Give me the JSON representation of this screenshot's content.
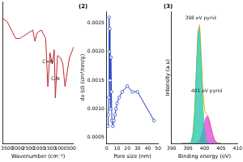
{
  "chart_data": [
    {
      "type": "line",
      "x_label": "Wavenumber (cm⁻¹)",
      "x": [
        3700,
        3500,
        3300,
        3100,
        2900,
        2700,
        2500,
        2300,
        2200,
        2100,
        1900,
        1700,
        1600,
        1500,
        1400,
        1300,
        1250,
        1150,
        1000,
        900,
        800,
        700,
        600,
        500,
        400
      ],
      "series": [
        {
          "color": "#c0282d",
          "values": [
            74,
            73,
            70,
            67,
            67,
            68,
            69,
            70,
            66,
            69,
            70,
            67,
            50,
            62,
            58,
            63,
            46,
            61,
            60,
            58,
            50,
            55,
            60,
            62,
            64
          ]
        }
      ],
      "xlim": [
        3700,
        400
      ],
      "xticks": [
        3500,
        3000,
        2500,
        2000,
        1500,
        1000,
        500
      ],
      "ylim": [
        30,
        80
      ],
      "tick_labels": "x",
      "grid": false,
      "annotations": [
        {
          "text": "C=N",
          "x": 1600,
          "y": 58
        },
        {
          "text": "C-N",
          "x": 1250,
          "y": 52
        }
      ]
    },
    {
      "type": "line",
      "title": "(2)",
      "x_label": "Pore size (nm)",
      "y_label": "dv (d) (cm³/nm/g)",
      "x": [
        1,
        1.5,
        2,
        2.3,
        2.6,
        3,
        3.3,
        3.6,
        4,
        4.5,
        5,
        6,
        7,
        8,
        9,
        10,
        12,
        15,
        20,
        25,
        30,
        46
      ],
      "series": [
        {
          "color": "#1f3fbf",
          "marker": "circle",
          "values": [
            0.0007,
            0.0009,
            0.0012,
            0.0026,
            0.002,
            0.0024,
            0.0015,
            0.001,
            0.0019,
            0.0013,
            0.0008,
            0.0007,
            0.0008,
            0.0009,
            0.001,
            0.0011,
            0.0012,
            0.0013,
            0.0014,
            0.0013,
            0.0013,
            0.0008
          ]
        }
      ],
      "xlim": [
        0,
        50
      ],
      "xticks": [
        0,
        10,
        20,
        30,
        40,
        50
      ],
      "ylim": [
        0.0004,
        0.0027
      ],
      "yticks": [
        0.0005,
        {
          "value": 0.001,
          "label": "0.0010"
        },
        0.0015,
        {
          "value": 0.002,
          "label": "0.0020"
        },
        0.0025
      ],
      "grid": false
    },
    {
      "type": "line",
      "title": "(3)",
      "x_label": "Binding energy (eV)",
      "y_label": "Intensity (a.u)",
      "x": [
        393,
        393.5,
        394,
        394.5,
        395,
        395.5,
        396,
        396.5,
        397,
        397.5,
        398,
        398.5,
        399,
        399.5,
        400,
        400.5,
        401,
        401.5,
        402,
        402.5,
        403,
        403.5,
        404,
        404.5,
        405
      ],
      "series": [
        {
          "type": "area",
          "color": "#21c4a8",
          "values": [
            0,
            0,
            0,
            0,
            0,
            0.2,
            1.5,
            7.6,
            25.4,
            57.6,
            88.6,
            92.1,
            64.8,
            30.8,
            9.9,
            2.2,
            0.3,
            0,
            0,
            0,
            0,
            0,
            0,
            0,
            0
          ]
        },
        {
          "type": "area",
          "color": "#e040d8",
          "values": [
            0,
            0,
            0,
            0,
            0,
            0,
            0,
            0,
            0.1,
            0.2,
            0.9,
            2.5,
            5.8,
            10.9,
            16.9,
            21.2,
            21.6,
            18.0,
            12.1,
            6.7,
            3.0,
            1.1,
            0.3,
            0.1,
            0
          ]
        },
        {
          "type": "line",
          "color": "#f0b400",
          "values": [
            0,
            0,
            0,
            0,
            0,
            0.2,
            1.5,
            7.6,
            25.5,
            57.8,
            89.5,
            94.6,
            70.6,
            41.7,
            26.8,
            23.4,
            21.9,
            18.0,
            12.1,
            6.7,
            3.0,
            1.1,
            0.3,
            0.1,
            0
          ]
        }
      ],
      "xlim": [
        390,
        410
      ],
      "xticks": [
        390,
        395,
        400,
        405,
        410
      ],
      "ylim": [
        0,
        105
      ],
      "tick_labels": "x",
      "grid": false,
      "annotations": [
        {
          "text": "398 eV pyrid",
          "x": 398.8,
          "y": 98
        },
        {
          "text": "401 eV pyrid",
          "x": 400.6,
          "y": 40
        }
      ]
    }
  ]
}
